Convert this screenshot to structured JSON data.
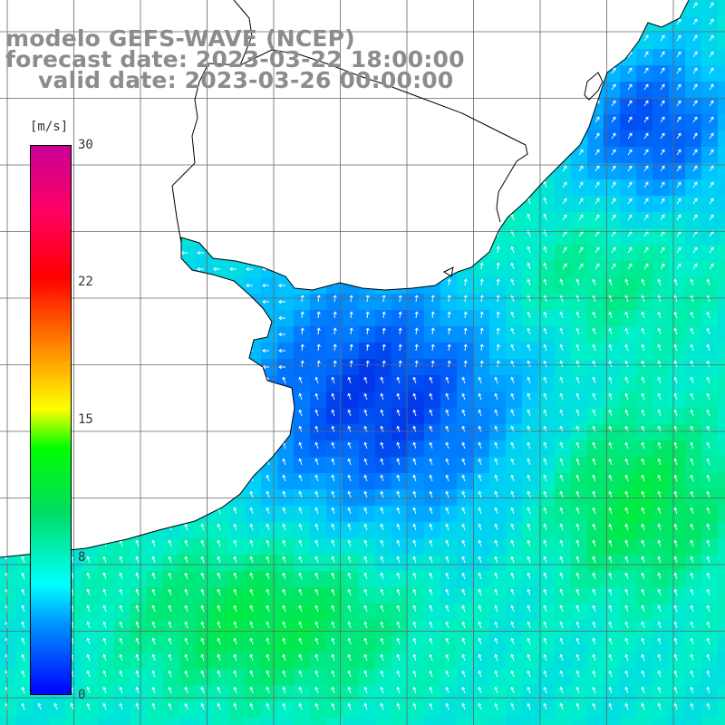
{
  "title": {
    "line1": "modelo GEFS-WAVE (NCEP)",
    "line2": "forecast date: 2023-03-22 18:00:00",
    "line3": "valid date: 2023-03-26 00:00:00"
  },
  "colorbar": {
    "unit": "[m/s]",
    "ticks": [
      "30",
      "22",
      "15",
      "8",
      "0"
    ],
    "stops": [
      "#0000ff",
      "#0096ff",
      "#00ffff",
      "#00dc64",
      "#00ff00",
      "#ffff00",
      "#ff9600",
      "#ff0000",
      "#ff0064",
      "#c80096"
    ]
  },
  "colors": {
    "land": "#ffffff",
    "coast": "#000000",
    "grid": "#666666",
    "arrows": "#ffffff"
  }
}
